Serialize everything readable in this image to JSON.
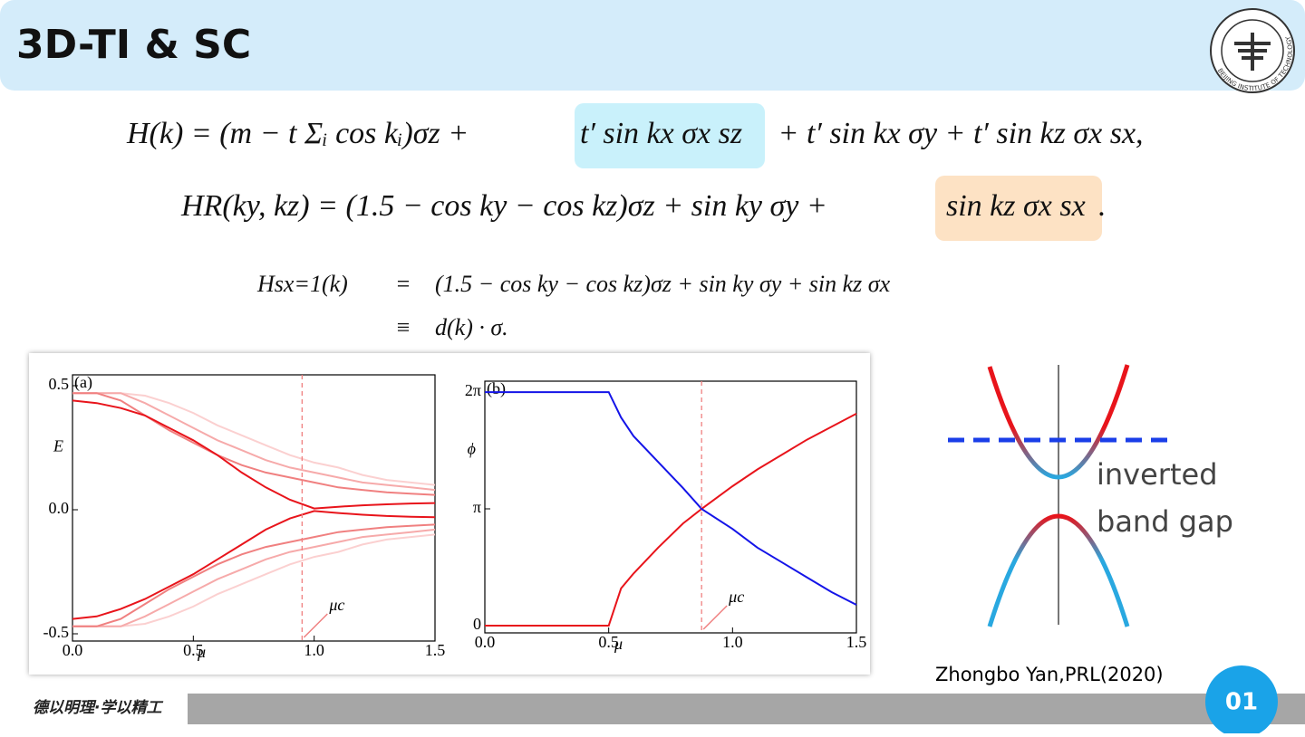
{
  "header": {
    "title": "3D-TI & SC",
    "logo_text": "BEIJING INSTITUTE OF TECHNOLOGY"
  },
  "equations": {
    "eq1": [
      "H(k) = (m − t Σᵢ cos kᵢ)σz + ",
      "t′ sin kx σx sz",
      " + t′ sin kx σy + t′ sin kz σx sx,"
    ],
    "eq2": [
      "HR(ky, kz) = (1.5 − cos ky − cos kz)σz + sin ky σy + ",
      "sin kz σx sx",
      "."
    ],
    "eq3": [
      "Hsx=1(k)",
      "=",
      "(1.5 − cos ky − cos kz)σz + sin ky σy + sin kz σx"
    ],
    "eq4": [
      "≡",
      "d(k) · σ."
    ]
  },
  "chart_data": [
    {
      "type": "line",
      "panel_label": "(a)",
      "xlabel": "μ",
      "ylabel": "E",
      "x": [
        0,
        0.1,
        0.2,
        0.3,
        0.4,
        0.5,
        0.6,
        0.7,
        0.8,
        0.9,
        1.0,
        1.1,
        1.2,
        1.3,
        1.4,
        1.5
      ],
      "series": [
        {
          "color": "#fbd0d0",
          "values": [
            0.47,
            0.47,
            0.47,
            0.46,
            0.43,
            0.39,
            0.34,
            0.3,
            0.26,
            0.22,
            0.19,
            0.17,
            0.14,
            0.12,
            0.11,
            0.1
          ]
        },
        {
          "color": "#f6aaaa",
          "values": [
            0.47,
            0.47,
            0.47,
            0.43,
            0.38,
            0.33,
            0.28,
            0.24,
            0.2,
            0.17,
            0.15,
            0.13,
            0.11,
            0.1,
            0.09,
            0.08
          ]
        },
        {
          "color": "#f08080",
          "values": [
            0.47,
            0.47,
            0.44,
            0.38,
            0.32,
            0.27,
            0.22,
            0.18,
            0.15,
            0.13,
            0.11,
            0.09,
            0.08,
            0.07,
            0.065,
            0.06
          ]
        },
        {
          "color": "#fbd0d0",
          "values": [
            -0.47,
            -0.47,
            -0.47,
            -0.46,
            -0.43,
            -0.39,
            -0.34,
            -0.3,
            -0.26,
            -0.22,
            -0.19,
            -0.17,
            -0.14,
            -0.12,
            -0.11,
            -0.1
          ]
        },
        {
          "color": "#f6aaaa",
          "values": [
            -0.47,
            -0.47,
            -0.47,
            -0.43,
            -0.38,
            -0.33,
            -0.28,
            -0.24,
            -0.2,
            -0.17,
            -0.15,
            -0.13,
            -0.11,
            -0.1,
            -0.09,
            -0.08
          ]
        },
        {
          "color": "#f08080",
          "values": [
            -0.47,
            -0.47,
            -0.44,
            -0.38,
            -0.32,
            -0.27,
            -0.22,
            -0.18,
            -0.15,
            -0.13,
            -0.11,
            -0.09,
            -0.08,
            -0.07,
            -0.065,
            -0.06
          ]
        },
        {
          "color": "#e8141b",
          "values": [
            0.44,
            0.43,
            0.41,
            0.38,
            0.33,
            0.28,
            0.22,
            0.15,
            0.09,
            0.04,
            0.005,
            0.012,
            0.018,
            0.022,
            0.025,
            0.027
          ]
        },
        {
          "color": "#e8141b",
          "values": [
            -0.44,
            -0.43,
            -0.4,
            -0.36,
            -0.31,
            -0.26,
            -0.2,
            -0.14,
            -0.08,
            -0.035,
            -0.005,
            -0.013,
            -0.02,
            -0.025,
            -0.028,
            -0.03
          ]
        }
      ],
      "xlim": [
        0,
        1.5
      ],
      "ylim": [
        -0.5,
        0.5
      ],
      "xticks": [
        {
          "value": 0,
          "label": "0.0"
        },
        0.5,
        {
          "value": 1,
          "label": "1.0"
        },
        1.5
      ],
      "yticks": [
        0.5,
        {
          "value": 0,
          "label": "0.0"
        },
        -0.5
      ],
      "annotation": {
        "text": "μc",
        "x": 0.95
      }
    },
    {
      "type": "line",
      "panel_label": "(b)",
      "xlabel": "μ",
      "ylabel": "ϕ",
      "x": [
        0,
        0.5,
        0.55,
        0.6,
        0.7,
        0.8,
        0.875,
        1.0,
        1.1,
        1.2,
        1.3,
        1.4,
        1.5
      ],
      "series": [
        {
          "color": "#e8141b",
          "values": [
            0,
            0,
            1.0,
            1.4,
            2.1,
            2.75,
            3.14,
            3.75,
            4.2,
            4.6,
            5.0,
            5.35,
            5.7
          ]
        },
        {
          "color": "#1414e8",
          "values": [
            6.28,
            6.28,
            5.6,
            5.1,
            4.4,
            3.7,
            3.14,
            2.6,
            2.1,
            1.7,
            1.3,
            0.9,
            0.56
          ]
        }
      ],
      "xlim": [
        0,
        1.5
      ],
      "ylim": [
        0,
        6.2832
      ],
      "xticks": [
        {
          "value": 0,
          "label": "0.0"
        },
        0.5,
        {
          "value": 1,
          "label": "1.0"
        },
        1.5
      ],
      "yticks": [
        0,
        {
          "value": 3.1416,
          "label": "π"
        },
        {
          "value": 6.2832,
          "label": "2π"
        }
      ],
      "annotation": {
        "text": "μc",
        "x": 0.875
      }
    }
  ],
  "schematic": {
    "label_line1": "inverted",
    "label_line2": "band gap"
  },
  "caption": "Zhongbo Yan,PRL(2020)",
  "footer": {
    "motto": "德以明理·学以精工",
    "page_number": "01"
  }
}
